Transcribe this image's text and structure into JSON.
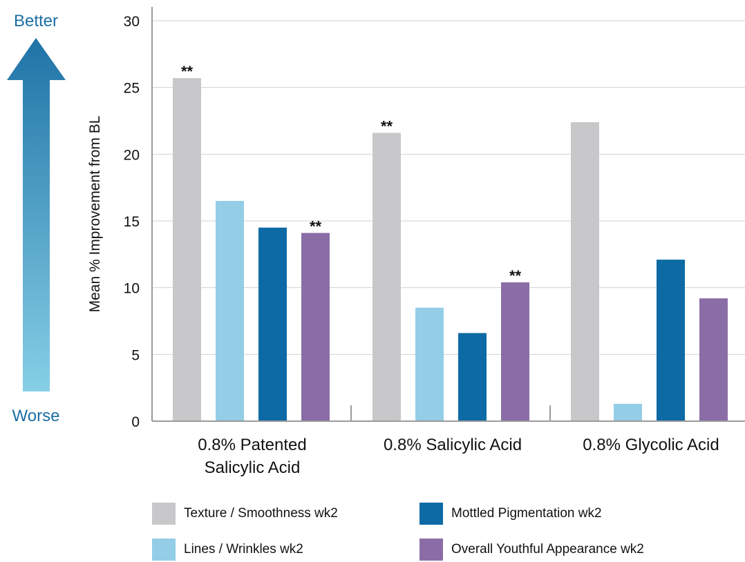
{
  "colors": {
    "arrow_top": "#1f73a6",
    "arrow_bottom": "#86cfe6",
    "arrow_text": "#1a6fa3",
    "axis": "#9a9a9a",
    "grid": "#d0d0d0"
  },
  "arrow": {
    "top_label": "Better",
    "bottom_label": "Worse"
  },
  "chart_data": {
    "type": "bar",
    "ylabel": "Mean % Improvement from BL",
    "ylim": [
      0,
      30
    ],
    "yticks": [
      "0",
      "5",
      "10",
      "15",
      "20",
      "25",
      "30"
    ],
    "grid": true,
    "legend_position": "bottom",
    "groups": [
      {
        "label_lines": [
          "0.8% Patented",
          "Salicylic Acid"
        ]
      },
      {
        "label_lines": [
          "0.8% Salicylic Acid"
        ]
      },
      {
        "label_lines": [
          "0.8% Glycolic Acid"
        ]
      }
    ],
    "series": [
      {
        "name": "Texture / Smoothness wk2",
        "color": "#c8c7c9",
        "values": [
          25.7,
          21.6,
          22.4
        ],
        "marks": [
          "**",
          "**",
          ""
        ]
      },
      {
        "name": "Lines / Wrinkles wk2",
        "color": "#94cde6",
        "values": [
          16.5,
          8.5,
          1.3
        ],
        "marks": [
          "",
          "",
          ""
        ]
      },
      {
        "name": "Mottled Pigmentation wk2",
        "color": "#0d6aa5",
        "values": [
          14.5,
          6.6,
          12.1
        ],
        "marks": [
          "",
          "",
          ""
        ]
      },
      {
        "name": "Overall Youthful Appearance wk2",
        "color": "#8a6da6",
        "values": [
          14.1,
          10.4,
          9.2
        ],
        "marks": [
          "**",
          "**",
          ""
        ]
      }
    ]
  }
}
